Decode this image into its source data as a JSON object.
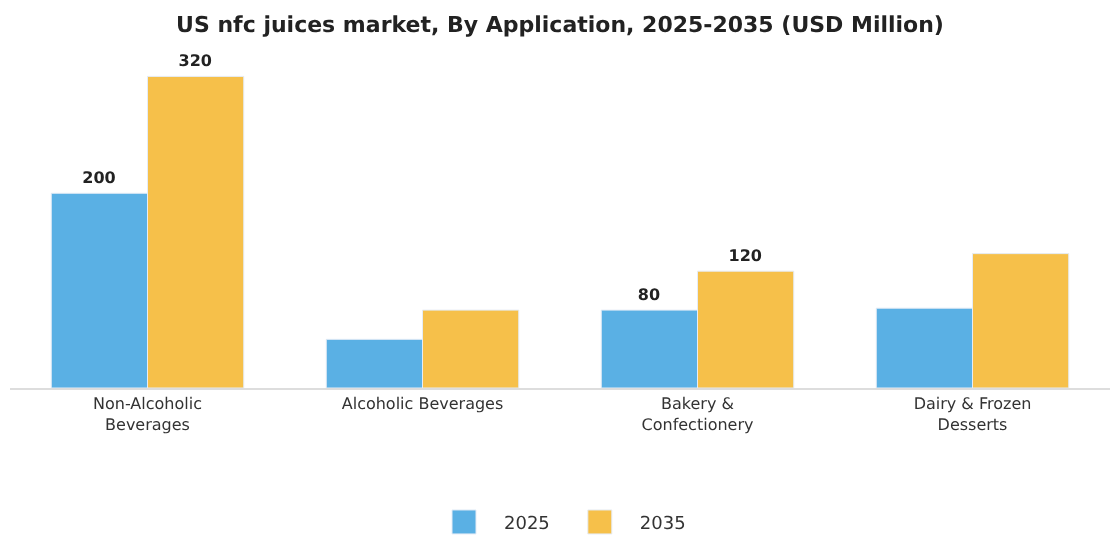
{
  "chart_data": {
    "type": "bar",
    "title": "US nfc juices market, By Application, 2025-2035 (USD Million)",
    "categories": [
      "Non-Alcoholic\nBeverages",
      "Alcoholic Beverages",
      "Bakery &\nConfectionery",
      "Dairy & Frozen\nDesserts"
    ],
    "series": [
      {
        "name": "2025",
        "color": "#5ab0e4",
        "values": [
          200,
          50,
          80,
          82
        ],
        "value_labels": [
          "200",
          null,
          "80",
          null
        ]
      },
      {
        "name": "2035",
        "color": "#f6c04a",
        "values": [
          320,
          80,
          120,
          138
        ],
        "value_labels": [
          "320",
          null,
          "120",
          null
        ]
      }
    ],
    "tick_labels": "x",
    "legend": "bottom"
  }
}
